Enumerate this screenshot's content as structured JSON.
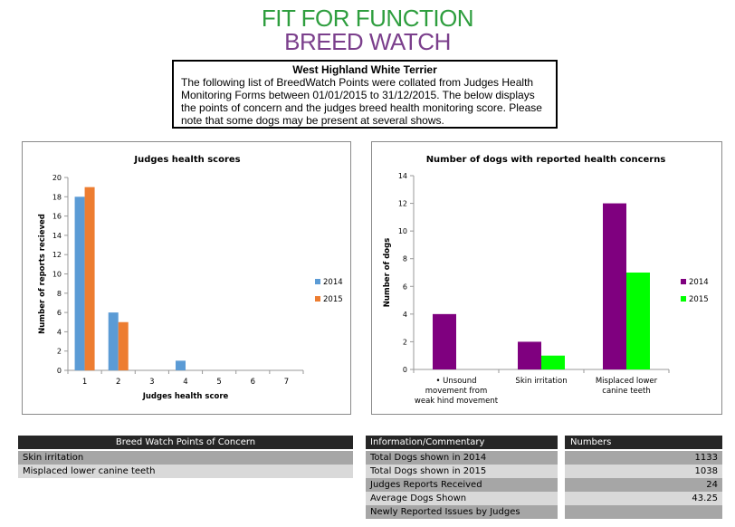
{
  "logo": {
    "line1": "FIT FOR FUNCTION",
    "line2": "BREED WATCH",
    "color1": "#2e9e3e",
    "color2": "#7b3f8c"
  },
  "info": {
    "title": "West Highland White Terrier",
    "text": "The following list of BreedWatch Points were collated from Judges Health Monitoring Forms between 01/01/2015 to 31/12/2015. The below displays the points of concern and the judges breed health monitoring score. Please note that some dogs may be present at several shows."
  },
  "chart_data": [
    {
      "type": "bar",
      "title": "Judges health scores",
      "xlabel": "Judges health score",
      "ylabel": "Number of reports recieved",
      "categories": [
        "1",
        "2",
        "3",
        "4",
        "5",
        "6",
        "7"
      ],
      "ylim": [
        0,
        20
      ],
      "yticks": [
        "0",
        "2",
        "4",
        "6",
        "8",
        "10",
        "12",
        "14",
        "16",
        "18",
        "20"
      ],
      "grid": false,
      "legend": "right",
      "series": [
        {
          "name": "2014",
          "color": "#5b9bd5",
          "values": [
            18,
            6,
            0,
            1,
            0,
            0,
            0
          ]
        },
        {
          "name": "2015",
          "color": "#ed7d31",
          "values": [
            19,
            5,
            0,
            0,
            0,
            0,
            0
          ]
        }
      ]
    },
    {
      "type": "bar",
      "title": "Number of dogs with reported health concerns",
      "xlabel": "",
      "ylabel": "Number of dogs",
      "categories": [
        "Unsound movement from weak hind movement",
        "Skin irritation",
        "Misplaced lower canine teeth"
      ],
      "category_lines": [
        [
          "• Unsound",
          "movement from",
          "weak hind movement"
        ],
        [
          "Skin irritation"
        ],
        [
          "Misplaced lower",
          "canine teeth"
        ]
      ],
      "ylim": [
        0,
        14
      ],
      "yticks": [
        "0",
        "2",
        "4",
        "6",
        "8",
        "10",
        "12",
        "14"
      ],
      "grid": false,
      "legend": "right",
      "series": [
        {
          "name": "2014",
          "color": "#7f007f",
          "values": [
            4,
            2,
            12
          ]
        },
        {
          "name": "2015",
          "color": "#00ff00",
          "values": [
            0,
            1,
            7
          ]
        }
      ]
    }
  ],
  "concerns": {
    "header": "Breed Watch Points of Concern",
    "items": [
      "Skin irritation",
      "Misplaced lower canine teeth"
    ]
  },
  "commentary": {
    "header": "Information/Commentary",
    "items": [
      "Total Dogs shown in 2014",
      "Total Dogs shown in 2015",
      "Judges Reports Received",
      "Average Dogs Shown",
      "Newly Reported Issues by Judges"
    ]
  },
  "numbers": {
    "header": "Numbers",
    "items": [
      "1133",
      "1038",
      "24",
      "43.25",
      ""
    ]
  }
}
